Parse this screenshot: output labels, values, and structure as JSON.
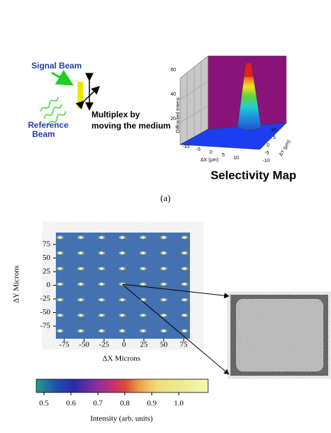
{
  "figure_a": {
    "signal_beam": "Signal Beam",
    "reference_beam": [
      "Reference",
      "Beam"
    ],
    "multiplex": [
      "Multiplex by",
      "moving the medium"
    ],
    "plot": {
      "z_label": "Diffracted Intens",
      "z_ticks": [
        "20",
        "40",
        "60"
      ],
      "x_label": "ΔX (µm)",
      "x_ticks": [
        "-10",
        "-5",
        "0",
        "5",
        "10"
      ],
      "y_label": "ΔY (µm)",
      "y_ticks": [
        "10",
        "5",
        "0",
        "-5",
        "-10"
      ],
      "title": "Selectivity Map"
    },
    "caption": "(a)"
  },
  "figure_b": {
    "y_label": "ΔY Microns",
    "y_ticks": [
      "75",
      "50",
      "25",
      "0",
      "-25",
      "-50",
      "-75"
    ],
    "x_label": "ΔX Microns",
    "x_ticks": [
      "-75",
      "-50",
      "-25",
      "0",
      "25",
      "50",
      "75"
    ],
    "colorbar_ticks": [
      "0.5",
      "0.6",
      "0.7",
      "0.8",
      "0.9",
      "1.0"
    ],
    "colorbar_label": "Intensity (arb. units)"
  }
}
